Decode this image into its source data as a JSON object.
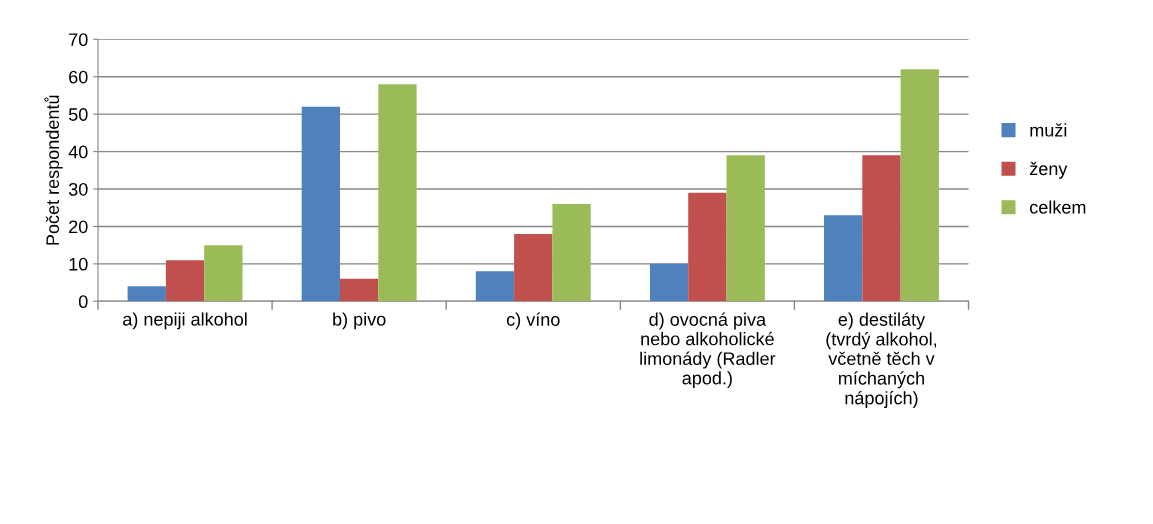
{
  "chart_data": {
    "type": "bar",
    "ylabel": "Počet respondentů",
    "categories": [
      "a) nepiji alkohol",
      "b) pivo",
      "c) víno",
      "d) ovocná piva nebo alkoholické limonády (Radler apod.)",
      "e) destiláty (tvrdý alkohol, včetně těch v míchaných nápojích)"
    ],
    "series": [
      {
        "name": "muži",
        "color": "#4f81bd",
        "values": [
          4,
          52,
          8,
          10,
          23
        ]
      },
      {
        "name": "ženy",
        "color": "#c0504d",
        "values": [
          11,
          6,
          18,
          29,
          39
        ]
      },
      {
        "name": "celkem",
        "color": "#9bbb59",
        "values": [
          15,
          58,
          26,
          39,
          62
        ]
      }
    ],
    "ylim": [
      0,
      70
    ],
    "yticks": [
      0,
      10,
      20,
      30,
      40,
      50,
      60,
      70
    ],
    "grid": "y",
    "legend": "right"
  }
}
